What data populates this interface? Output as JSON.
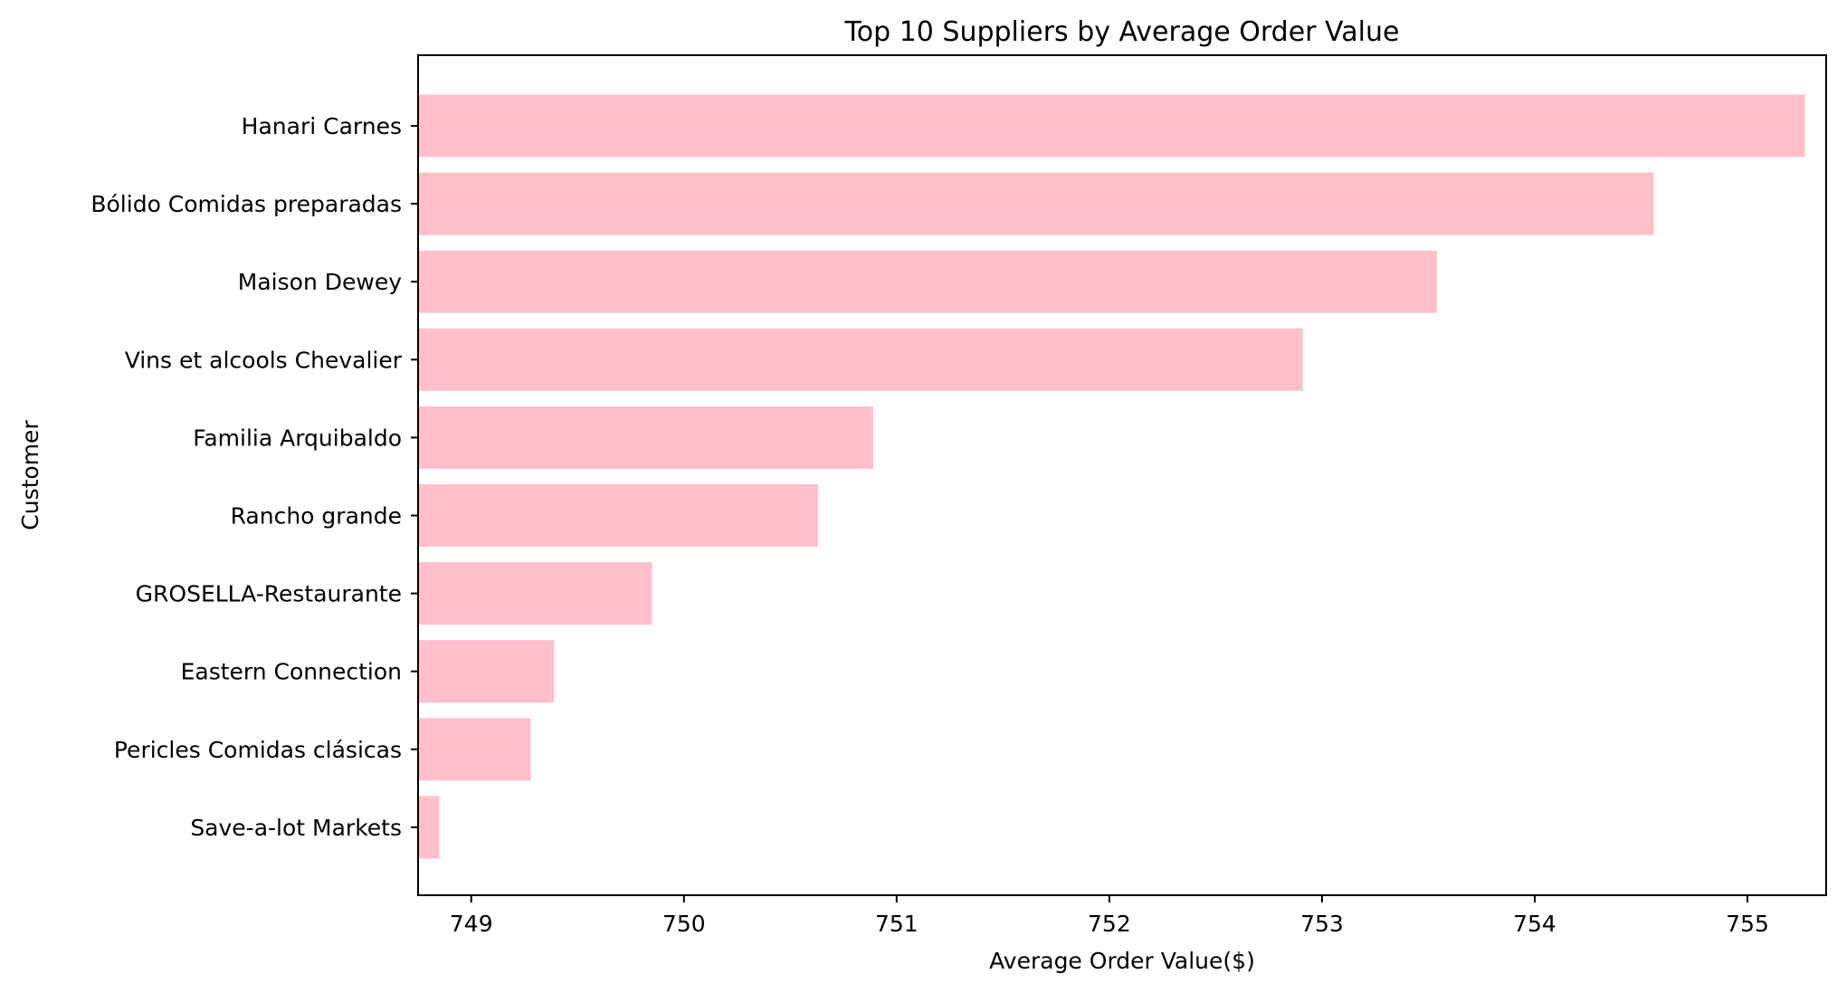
{
  "chart_data": {
    "type": "bar",
    "orientation": "horizontal",
    "title": "Top 10 Suppliers by Average Order Value",
    "xlabel": "Average Order Value($)",
    "ylabel": "Customer",
    "categories": [
      "Hanari Carnes",
      "Bólido Comidas preparadas",
      "Maison Dewey",
      "Vins et alcools Chevalier",
      "Familia Arquibaldo",
      "Rancho grande",
      "GROSELLA-Restaurante",
      "Eastern Connection",
      "Pericles Comidas clásicas",
      "Save-a-lot Markets"
    ],
    "values": [
      755.27,
      754.56,
      753.54,
      752.91,
      750.89,
      750.63,
      749.85,
      749.39,
      749.28,
      748.85
    ],
    "xlim": [
      748.75,
      755.37
    ],
    "xticks": [
      749,
      750,
      751,
      752,
      753,
      754,
      755
    ],
    "xtick_labels": [
      "749",
      "750",
      "751",
      "752",
      "753",
      "754",
      "755"
    ],
    "bar_color": "#ffc0cb",
    "grid": false,
    "legend": "none"
  }
}
